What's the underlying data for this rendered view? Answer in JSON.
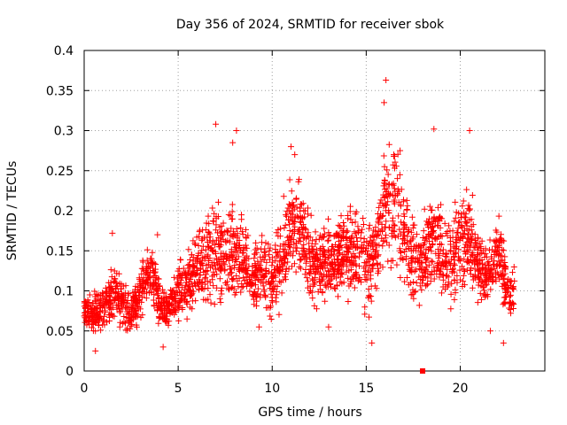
{
  "chart_data": {
    "type": "scatter",
    "title": "Day 356 of 2024, SRMTID for receiver sbok",
    "xlabel": "GPS time / hours",
    "ylabel": "SRMTID / TECUs",
    "xlim": [
      0,
      24.5
    ],
    "ylim": [
      0,
      0.4
    ],
    "xticks": [
      0,
      5,
      10,
      15,
      20
    ],
    "xtick_labels": [
      "0",
      "5",
      "10",
      "15",
      "20"
    ],
    "yticks": [
      0,
      0.05,
      0.1,
      0.15,
      0.2,
      0.25,
      0.3,
      0.35,
      0.4
    ],
    "ytick_labels": [
      "0",
      "0.05",
      "0.1",
      "0.15",
      "0.2",
      "0.25",
      "0.3",
      "0.35",
      "0.4"
    ],
    "grid": true,
    "marker": "+",
    "color": "#ff0000",
    "special_marker": {
      "x": 18.0,
      "y": 0.0,
      "shape": "square"
    },
    "envelope": {
      "x": [
        0,
        0.5,
        1.0,
        1.5,
        2.0,
        2.5,
        3.0,
        3.5,
        4.0,
        4.5,
        5.0,
        5.5,
        6.0,
        6.5,
        7.0,
        7.5,
        8.0,
        8.5,
        9.0,
        9.5,
        10.0,
        10.5,
        11.0,
        11.5,
        12.0,
        12.5,
        13.0,
        13.5,
        14.0,
        14.5,
        15.0,
        15.5,
        16.0,
        16.5,
        17.0,
        17.5,
        18.0,
        18.5,
        19.0,
        19.5,
        20.0,
        20.5,
        21.0,
        21.5,
        22.0,
        22.5,
        22.9
      ],
      "center": [
        0.075,
        0.072,
        0.075,
        0.095,
        0.085,
        0.07,
        0.1,
        0.125,
        0.085,
        0.075,
        0.1,
        0.11,
        0.12,
        0.14,
        0.15,
        0.14,
        0.14,
        0.14,
        0.115,
        0.125,
        0.11,
        0.14,
        0.18,
        0.17,
        0.14,
        0.13,
        0.14,
        0.14,
        0.15,
        0.145,
        0.13,
        0.15,
        0.2,
        0.21,
        0.17,
        0.14,
        0.14,
        0.17,
        0.15,
        0.14,
        0.16,
        0.17,
        0.13,
        0.12,
        0.15,
        0.1,
        0.1
      ],
      "spread": [
        0.015,
        0.02,
        0.03,
        0.035,
        0.025,
        0.02,
        0.03,
        0.03,
        0.025,
        0.02,
        0.03,
        0.035,
        0.04,
        0.045,
        0.06,
        0.045,
        0.05,
        0.04,
        0.035,
        0.04,
        0.04,
        0.05,
        0.05,
        0.05,
        0.04,
        0.04,
        0.04,
        0.04,
        0.045,
        0.045,
        0.05,
        0.05,
        0.07,
        0.06,
        0.06,
        0.045,
        0.045,
        0.05,
        0.045,
        0.045,
        0.05,
        0.05,
        0.04,
        0.035,
        0.04,
        0.03,
        0.03
      ]
    },
    "outliers": [
      [
        16.05,
        0.363
      ],
      [
        15.95,
        0.335
      ],
      [
        7.0,
        0.308
      ],
      [
        8.1,
        0.3
      ],
      [
        18.6,
        0.302
      ],
      [
        20.5,
        0.3
      ],
      [
        11.0,
        0.28
      ],
      [
        7.9,
        0.285
      ],
      [
        16.8,
        0.275
      ],
      [
        11.2,
        0.27
      ],
      [
        0.3,
        0.095
      ],
      [
        1.5,
        0.172
      ],
      [
        3.9,
        0.17
      ],
      [
        0.6,
        0.025
      ],
      [
        21.6,
        0.05
      ],
      [
        22.3,
        0.035
      ],
      [
        15.3,
        0.035
      ],
      [
        4.2,
        0.03
      ],
      [
        9.3,
        0.055
      ],
      [
        13.0,
        0.055
      ]
    ]
  }
}
